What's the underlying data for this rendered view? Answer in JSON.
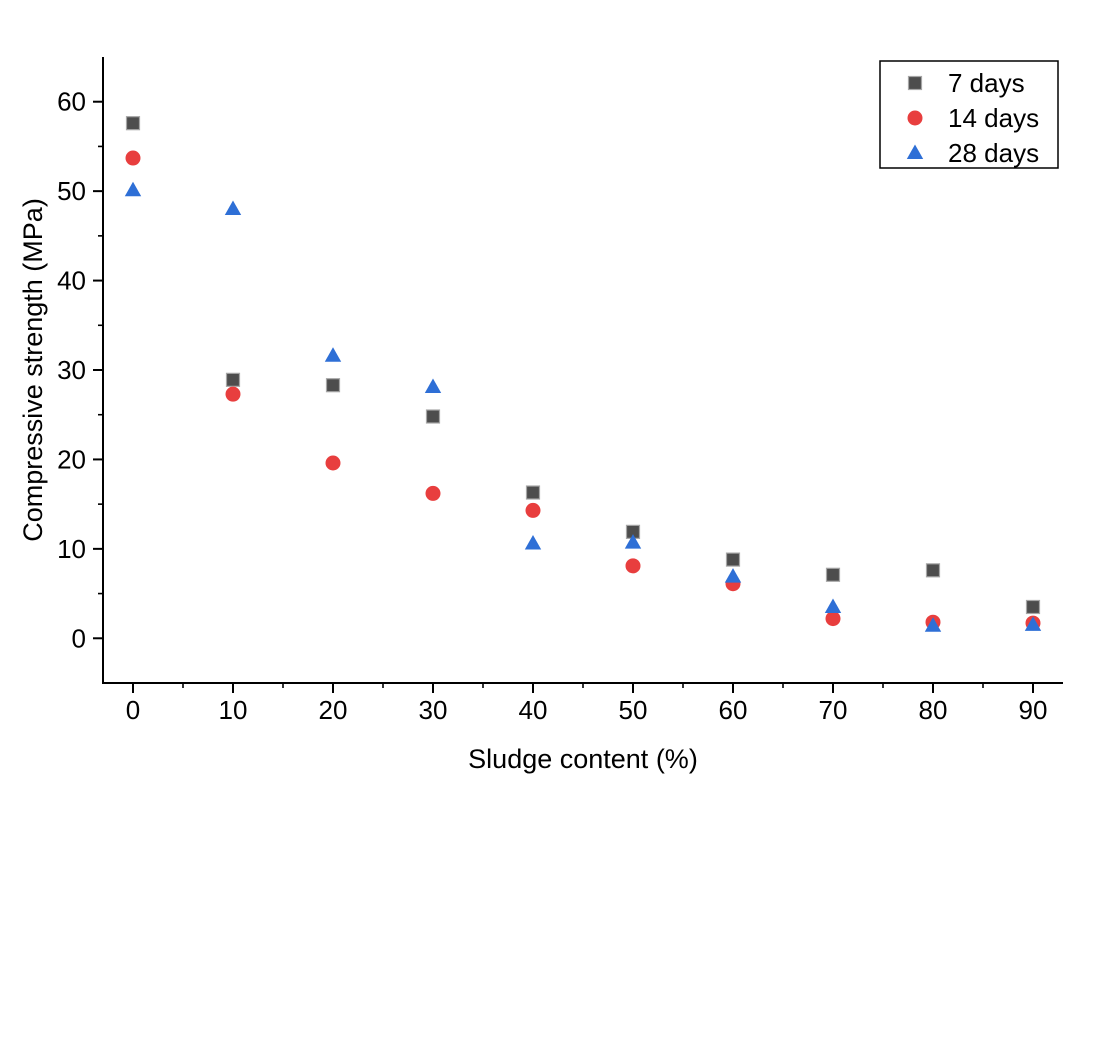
{
  "chart_data": {
    "type": "scatter",
    "title": "",
    "xlabel": "Sludge content (%)",
    "ylabel": "Compressive strength (MPa)",
    "x": [
      0,
      10,
      20,
      30,
      40,
      50,
      60,
      70,
      80,
      90
    ],
    "series": [
      {
        "name": "7 days",
        "marker": "square",
        "color": "#4d4d4d",
        "values": [
          57.6,
          28.9,
          28.3,
          24.8,
          16.3,
          11.9,
          8.8,
          7.1,
          7.6,
          3.5
        ]
      },
      {
        "name": "14 days",
        "marker": "circle",
        "color": "#e83e3e",
        "values": [
          53.7,
          27.3,
          19.6,
          16.2,
          14.3,
          8.1,
          6.1,
          2.2,
          1.8,
          1.7
        ]
      },
      {
        "name": "28 days",
        "marker": "triangle",
        "color": "#2e6fd6",
        "values": [
          50.1,
          48.0,
          31.6,
          28.1,
          10.6,
          10.7,
          6.9,
          3.5,
          1.4,
          1.5
        ]
      }
    ],
    "xlim": [
      -3,
      93
    ],
    "ylim": [
      -5,
      65
    ],
    "x_ticks": [
      0,
      10,
      20,
      30,
      40,
      50,
      60,
      70,
      80,
      90
    ],
    "y_ticks": [
      0,
      10,
      20,
      30,
      40,
      50,
      60
    ],
    "minor_tick_step": 5,
    "grid": false,
    "legend_position": "top-right",
    "axis_color": "#000000",
    "background_color": "#ffffff",
    "marker_edge_color": "#a6a6a6"
  }
}
